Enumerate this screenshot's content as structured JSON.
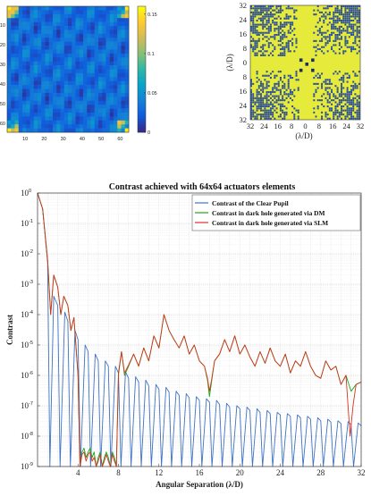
{
  "chart_data": [
    {
      "type": "heatmap",
      "x_ticks": [
        "10",
        "20",
        "30",
        "40",
        "50",
        "60"
      ],
      "y_ticks": [
        "10",
        "20",
        "30",
        "40",
        "50",
        "60"
      ],
      "colorbar_ticks": [
        "0.15",
        "0.1",
        "0.05",
        "0"
      ],
      "colorbar_range": [
        0,
        0.16
      ],
      "colormap": [
        "#352a87",
        "#0f5cdd",
        "#1481d6",
        "#06a4ca",
        "#2eb7a4",
        "#87bf77",
        "#d1bb59",
        "#fec832",
        "#f9fb0e"
      ]
    },
    {
      "type": "heatmap",
      "x_ticks": [
        "32",
        "24",
        "16",
        "8",
        "0",
        "8",
        "16",
        "24",
        "32"
      ],
      "y_ticks": [
        "32",
        "24",
        "16",
        "8",
        "0",
        "8",
        "16",
        "24",
        "32"
      ],
      "xlabel": "(λ/D)",
      "ylabel": "(λ/D)",
      "colors": {
        "high": "#e6ea3a",
        "low": "#2a4f9a"
      }
    },
    {
      "type": "line",
      "title": "Contrast achieved with 64x64 actuators elements",
      "xlabel": "Angular Separation (λ/D)",
      "ylabel": "Contrast",
      "xlim": [
        0,
        32
      ],
      "y_scale": "log",
      "ylim": [
        1e-09,
        1
      ],
      "x_ticks": [
        "4",
        "8",
        "12",
        "16",
        "20",
        "24",
        "28",
        "32"
      ],
      "y_ticks": [
        {
          "base": "10",
          "exp": "0",
          "value": 1
        },
        {
          "base": "10",
          "exp": "-1",
          "value": 0.1
        },
        {
          "base": "10",
          "exp": "-2",
          "value": 0.01
        },
        {
          "base": "10",
          "exp": "-3",
          "value": 0.001
        },
        {
          "base": "10",
          "exp": "-4",
          "value": 0.0001
        },
        {
          "base": "10",
          "exp": "-5",
          "value": 1e-05
        },
        {
          "base": "10",
          "exp": "-6",
          "value": 1e-06
        },
        {
          "base": "10",
          "exp": "-7",
          "value": 1e-07
        },
        {
          "base": "10",
          "exp": "-8",
          "value": 1e-08
        },
        {
          "base": "10",
          "exp": "-9",
          "value": 1e-09
        }
      ],
      "grid": true,
      "legend_position": "top-right",
      "series": [
        {
          "name": "Contrast of the Clear Pupil",
          "color": "#3f73c4",
          "x": [
            0.0,
            0.5,
            1.0,
            1.22,
            1.6,
            2.0,
            2.23,
            2.7,
            3.0,
            3.24,
            3.7,
            4.0,
            4.24,
            4.7,
            5.0,
            5.24,
            5.7,
            6.0,
            6.24,
            6.7,
            7.0,
            7.25,
            7.7,
            8.0,
            8.25,
            8.7,
            9.0,
            9.25,
            9.7,
            10.0,
            10.25,
            10.7,
            11.0,
            11.25,
            11.7,
            12.0,
            12.25,
            12.7,
            13.0,
            13.25,
            13.7,
            14.0,
            14.25,
            14.7,
            15.0,
            15.25,
            15.7,
            16.0,
            16.25,
            16.7,
            17.0,
            17.25,
            17.7,
            18.0,
            18.25,
            18.7,
            19.0,
            19.25,
            19.7,
            20.0,
            20.25,
            20.7,
            21.0,
            21.25,
            21.7,
            22.0,
            22.25,
            22.7,
            23.0,
            23.25,
            23.7,
            24.0,
            24.25,
            24.7,
            25.0,
            25.25,
            25.7,
            26.0,
            26.25,
            26.7,
            27.0,
            27.25,
            27.7,
            28.0,
            28.25,
            28.7,
            29.0,
            29.25,
            29.7,
            30.0,
            30.25,
            30.7,
            31.0,
            31.25,
            31.7,
            32.0
          ],
          "y": [
            1.0,
            0.3,
            0.005,
            1e-09,
            0.0004,
            0.0002,
            1e-09,
            0.00012,
            6e-05,
            1e-09,
            3e-05,
            1.5e-05,
            1e-09,
            1e-05,
            6e-06,
            1e-09,
            5e-06,
            3e-06,
            1e-09,
            3e-06,
            2e-06,
            1e-09,
            2e-06,
            1.2e-06,
            1e-09,
            1.3e-06,
            8e-07,
            1e-09,
            9e-07,
            6e-07,
            1e-09,
            7e-07,
            4.5e-07,
            1e-09,
            5e-07,
            3.5e-07,
            1e-09,
            4e-07,
            2.8e-07,
            1e-09,
            3e-07,
            2.2e-07,
            1e-09,
            2.5e-07,
            1.8e-07,
            1e-09,
            2e-07,
            1.5e-07,
            1e-09,
            1.7e-07,
            1.3e-07,
            1e-09,
            1.5e-07,
            1.1e-07,
            1e-09,
            1.2e-07,
            9e-08,
            1e-09,
            1e-07,
            8e-08,
            1e-09,
            9e-08,
            7e-08,
            1e-09,
            8e-08,
            6e-08,
            1e-09,
            7e-08,
            5.5e-08,
            1e-09,
            6e-08,
            5e-08,
            1e-09,
            5.5e-08,
            4.5e-08,
            1e-09,
            5e-08,
            4e-08,
            1e-09,
            4.5e-08,
            3.6e-08,
            1e-09,
            4e-08,
            3.2e-08,
            1e-09,
            3.6e-08,
            2.9e-08,
            1e-09,
            3.2e-08,
            2.6e-08,
            1e-09,
            3e-08,
            2.4e-08,
            1e-09,
            2.7e-08,
            2.2e-08
          ]
        },
        {
          "name": "Contrast in dark hole generated via DM",
          "color": "#1aa61a",
          "x": [
            0.0,
            0.5,
            1.0,
            1.3,
            1.6,
            2.0,
            2.3,
            2.6,
            3.0,
            3.3,
            3.6,
            4.0,
            4.2,
            4.4,
            4.6,
            4.8,
            5.0,
            5.2,
            5.4,
            5.6,
            5.8,
            6.0,
            6.2,
            6.4,
            6.6,
            6.8,
            7.0,
            7.2,
            7.4,
            7.6,
            7.8,
            8.0,
            8.3,
            8.6,
            9.0,
            9.5,
            10.0,
            10.5,
            11.0,
            11.5,
            12.0,
            12.5,
            13.0,
            13.5,
            14.0,
            14.5,
            15.0,
            15.5,
            16.0,
            16.5,
            16.8,
            17.0,
            17.2,
            17.5,
            18.0,
            18.5,
            19.0,
            19.5,
            20.0,
            20.5,
            21.0,
            21.5,
            22.0,
            22.5,
            23.0,
            23.5,
            24.0,
            24.5,
            25.0,
            25.5,
            26.0,
            26.5,
            27.0,
            27.5,
            28.0,
            28.5,
            29.0,
            29.5,
            30.0,
            30.5,
            31.0,
            31.5,
            32.0
          ],
          "y": [
            1.0,
            0.3,
            0.006,
            0.0001,
            0.002,
            0.0008,
            0.0001,
            0.0004,
            0.0002,
            3e-05,
            8e-05,
            1e-06,
            1e-09,
            3e-09,
            4e-09,
            2e-09,
            3e-09,
            4e-09,
            2e-09,
            3e-09,
            1e-09,
            2e-09,
            3e-09,
            1e-09,
            2e-09,
            3e-09,
            2e-09,
            1e-09,
            3e-09,
            2e-09,
            1e-09,
            1e-06,
            6e-06,
            1e-06,
            2e-06,
            5e-06,
            2e-06,
            8e-06,
            3e-06,
            2e-05,
            8e-06,
            0.0001,
            3e-05,
            1.5e-05,
            8e-06,
            2e-05,
            5e-06,
            1e-05,
            3e-06,
            2e-06,
            7e-07,
            2e-07,
            6e-07,
            3e-06,
            5e-06,
            1.5e-05,
            6e-06,
            2e-05,
            5e-06,
            1e-05,
            4e-06,
            2e-06,
            6e-06,
            2.5e-06,
            8e-06,
            3e-06,
            2e-06,
            5e-06,
            1.2e-06,
            3e-06,
            2e-06,
            6e-06,
            2e-06,
            1e-06,
            8e-07,
            3e-06,
            1.5e-06,
            2e-06,
            5e-07,
            1e-06,
            3e-07,
            5e-07,
            6e-07
          ]
        },
        {
          "name": "Contrast in dark hole generated via SLM",
          "color": "#d8321e",
          "x": [
            0.0,
            0.5,
            1.0,
            1.3,
            1.6,
            2.0,
            2.3,
            2.6,
            3.0,
            3.3,
            3.6,
            4.0,
            4.2,
            4.4,
            4.6,
            4.8,
            5.0,
            5.2,
            5.4,
            5.6,
            5.8,
            6.0,
            6.2,
            6.4,
            6.6,
            6.8,
            7.0,
            7.2,
            7.4,
            7.6,
            7.8,
            8.0,
            8.3,
            8.6,
            9.0,
            9.5,
            10.0,
            10.5,
            11.0,
            11.5,
            12.0,
            12.5,
            13.0,
            13.5,
            14.0,
            14.5,
            15.0,
            15.5,
            16.0,
            16.5,
            16.8,
            17.0,
            17.2,
            17.5,
            18.0,
            18.5,
            19.0,
            19.5,
            20.0,
            20.5,
            21.0,
            21.5,
            22.0,
            22.5,
            23.0,
            23.5,
            24.0,
            24.5,
            25.0,
            25.5,
            26.0,
            26.5,
            27.0,
            27.5,
            28.0,
            28.5,
            29.0,
            29.5,
            30.0,
            30.5,
            30.9,
            31.2,
            31.5,
            32.0
          ],
          "y": [
            1.0,
            0.3,
            0.006,
            0.0001,
            0.002,
            0.0008,
            0.0001,
            0.0004,
            0.0002,
            3e-05,
            8e-05,
            1e-06,
            1e-09,
            2.5e-09,
            3e-09,
            1.5e-09,
            2.5e-09,
            3e-09,
            1.5e-09,
            2e-09,
            1e-09,
            1.5e-09,
            2.5e-09,
            1e-09,
            1.5e-09,
            2.5e-09,
            1.5e-09,
            1e-09,
            2.5e-09,
            1.5e-09,
            1e-09,
            1.2e-06,
            6e-06,
            1.2e-06,
            2.2e-06,
            5e-06,
            2e-06,
            8e-06,
            3e-06,
            2e-05,
            8e-06,
            0.0001,
            3e-05,
            1.5e-05,
            8e-06,
            2e-05,
            5e-06,
            1e-05,
            3e-06,
            2e-06,
            8e-07,
            3e-07,
            7e-07,
            3e-06,
            5e-06,
            1.5e-05,
            6e-06,
            2e-05,
            5e-06,
            1e-05,
            4e-06,
            2e-06,
            6e-06,
            2.5e-06,
            8e-06,
            3e-06,
            2e-06,
            5e-06,
            1.2e-06,
            3e-06,
            2e-06,
            6e-06,
            2e-06,
            1e-06,
            8e-07,
            3e-06,
            1.5e-06,
            2e-06,
            5e-07,
            1e-06,
            1e-08,
            1e-07,
            5e-07,
            6e-07
          ]
        }
      ]
    }
  ]
}
